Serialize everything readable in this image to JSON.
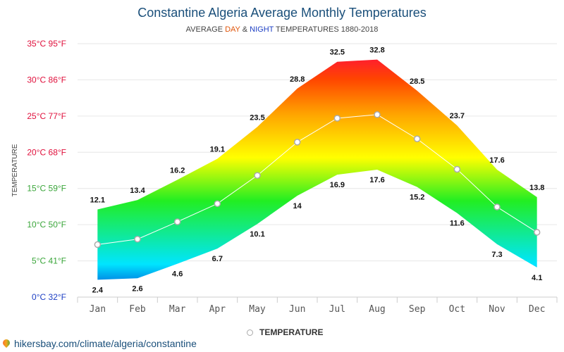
{
  "header": {
    "title": "Constantine Algeria Average Monthly Temperatures",
    "subtitle_prefix": "AVERAGE ",
    "subtitle_day": "DAY",
    "subtitle_amp": " & ",
    "subtitle_night": "NIGHT",
    "subtitle_suffix": " TEMPERATURES 1880-2018"
  },
  "legend": {
    "label": "TEMPERATURE"
  },
  "source": {
    "text": "hikersbay.com/climate/algeria/constantine"
  },
  "colors": {
    "title": "#1a4f7a",
    "day": "#e0550a",
    "night": "#1d3fc4",
    "line": "#ffffff",
    "marker_stroke": "#aaaaaa"
  },
  "chart_data": {
    "type": "area",
    "ylabel": "TEMPERATURE",
    "ylim": [
      0,
      35
    ],
    "yticks": [
      {
        "value": 0,
        "label": "0°C 32°F",
        "color": "#1d3fc4"
      },
      {
        "value": 5,
        "label": "5°C 41°F",
        "color": "#3aa63a"
      },
      {
        "value": 10,
        "label": "10°C 50°F",
        "color": "#3aa63a"
      },
      {
        "value": 15,
        "label": "15°C 59°F",
        "color": "#3aa63a"
      },
      {
        "value": 20,
        "label": "20°C 68°F",
        "color": "#e0103c"
      },
      {
        "value": 25,
        "label": "25°C 77°F",
        "color": "#e0103c"
      },
      {
        "value": 30,
        "label": "30°C 86°F",
        "color": "#e0103c"
      },
      {
        "value": 35,
        "label": "35°C 95°F",
        "color": "#e0103c"
      }
    ],
    "categories": [
      "Jan",
      "Feb",
      "Mar",
      "Apr",
      "May",
      "Jun",
      "Jul",
      "Aug",
      "Sep",
      "Oct",
      "Nov",
      "Dec"
    ],
    "series": [
      {
        "name": "DAY",
        "values": [
          12.1,
          13.4,
          16.2,
          19.1,
          23.5,
          28.8,
          32.5,
          32.8,
          28.5,
          23.7,
          17.6,
          13.8
        ]
      },
      {
        "name": "NIGHT",
        "values": [
          2.4,
          2.6,
          4.6,
          6.7,
          10.1,
          14,
          16.9,
          17.6,
          15.2,
          11.6,
          7.3,
          4.1
        ]
      },
      {
        "name": "TEMPERATURE",
        "values": [
          7.25,
          8.0,
          10.4,
          12.9,
          16.8,
          21.4,
          24.7,
          25.2,
          21.85,
          17.65,
          12.45,
          8.95
        ]
      }
    ],
    "grid": true,
    "legend_position": "bottom-center"
  }
}
